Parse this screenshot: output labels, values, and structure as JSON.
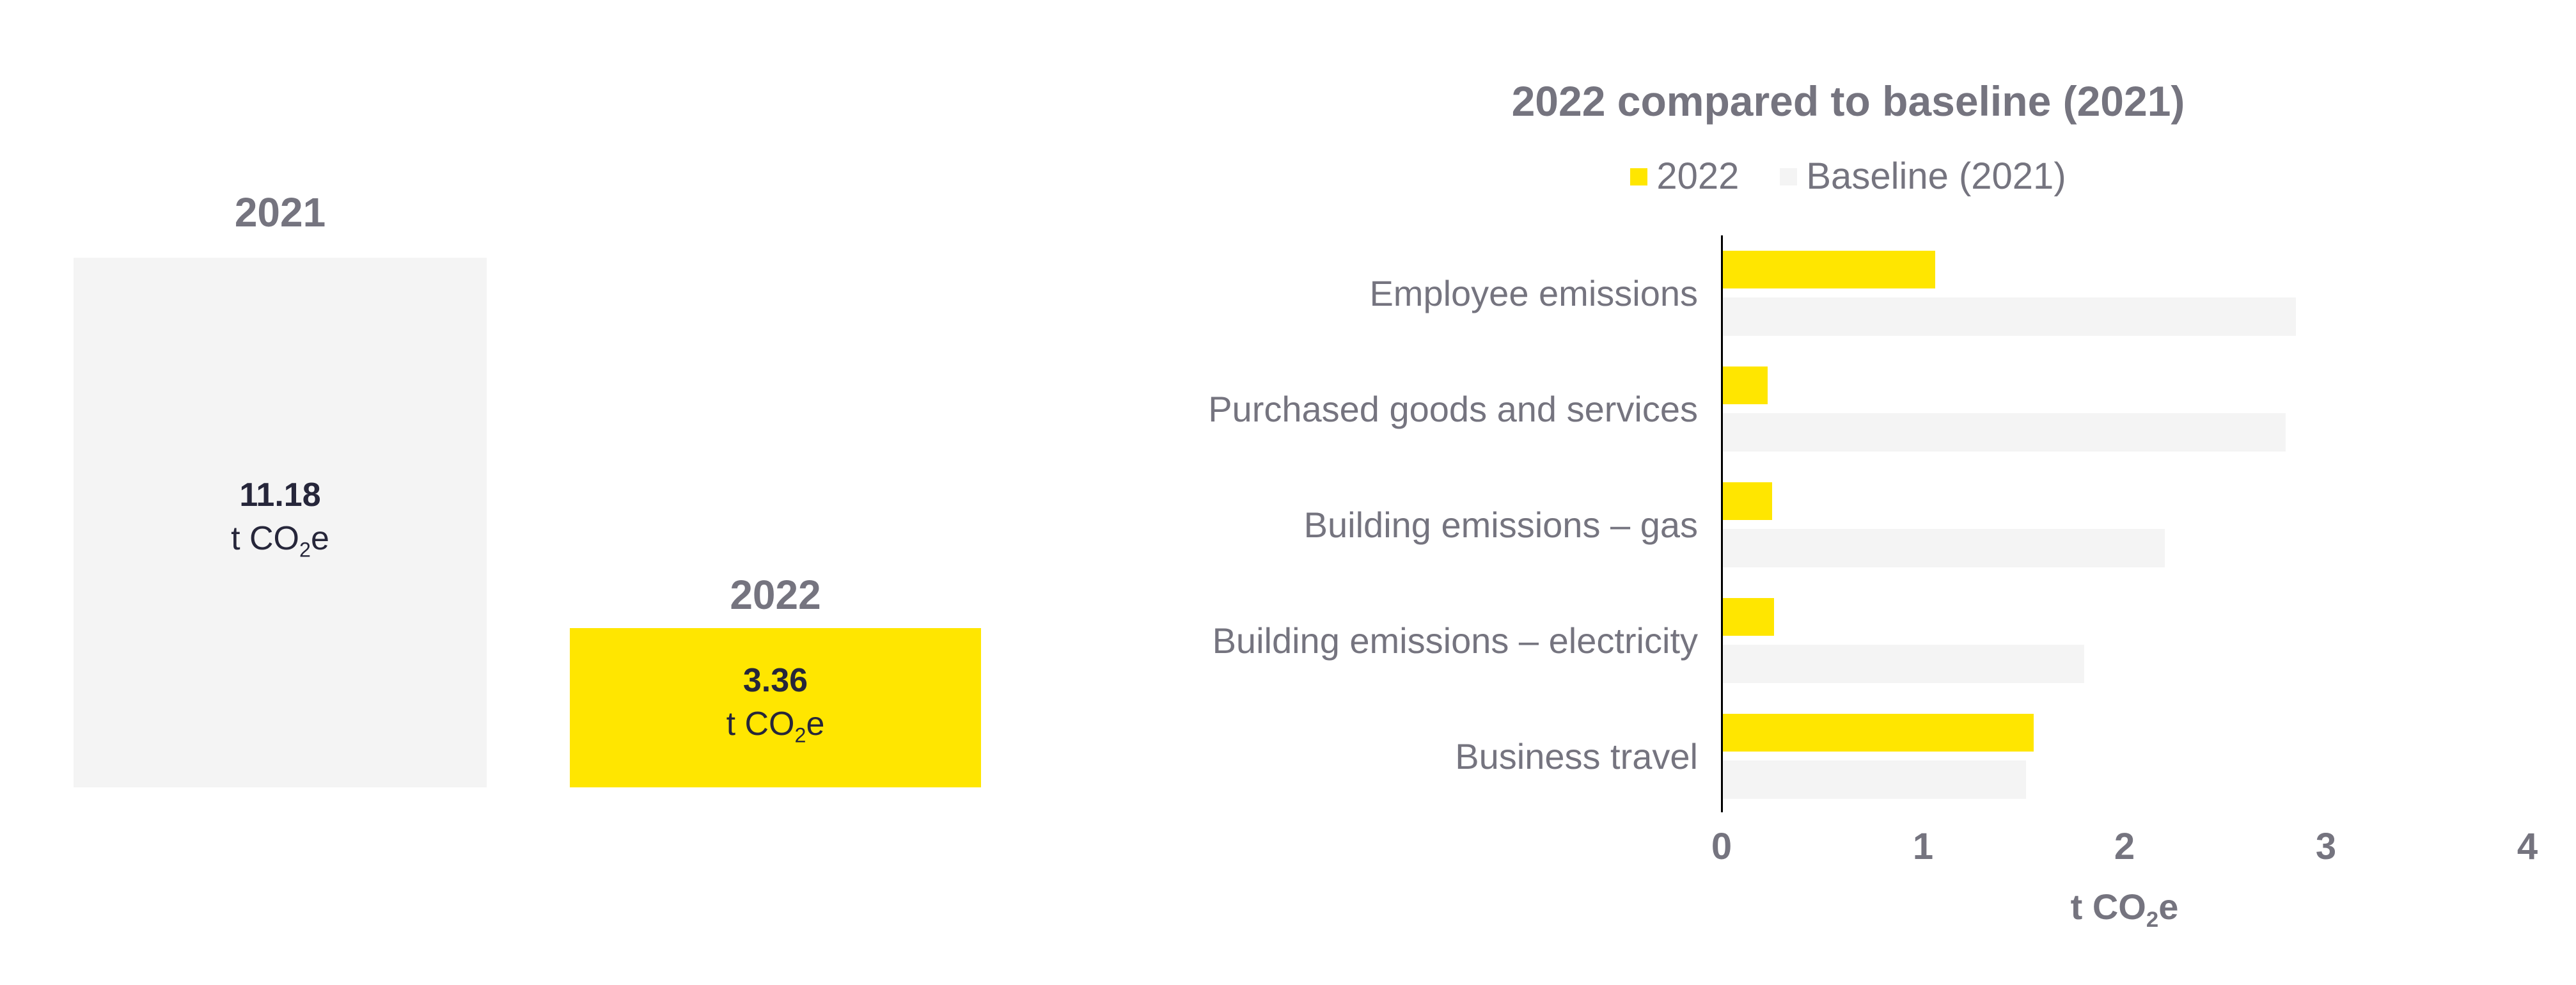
{
  "colors": {
    "accent_yellow": "#FFE600",
    "bar_gray": "#F4F4F4",
    "text_gray": "#75747F",
    "text_dark": "#26263A",
    "axis_black": "#000000"
  },
  "chart_data": [
    {
      "type": "bar",
      "orientation": "vertical",
      "title": "",
      "categories": [
        "2021",
        "2022"
      ],
      "values": [
        11.18,
        3.36
      ],
      "value_labels": [
        "11.18",
        "3.36"
      ],
      "unit_parts": {
        "pre": "t CO",
        "sub": "2",
        "post": "e"
      },
      "bar_colors": [
        "#F4F4F4",
        "#FFE600"
      ],
      "ylim": [
        0,
        11.18
      ],
      "grid": false
    },
    {
      "type": "bar",
      "orientation": "horizontal",
      "title": "2022 compared to baseline (2021)",
      "categories": [
        "Employee emissions",
        "Purchased goods and services",
        "Building emissions – gas",
        "Building emissions – electricity",
        "Business travel"
      ],
      "series": [
        {
          "name": "2022",
          "color": "#FFE600",
          "values": [
            1.06,
            0.23,
            0.25,
            0.26,
            1.55
          ]
        },
        {
          "name": "Baseline (2021)",
          "color": "#F4F4F4",
          "values": [
            2.85,
            2.8,
            2.2,
            1.8,
            1.51
          ]
        }
      ],
      "x_ticks": [
        "0",
        "1",
        "2",
        "3",
        "4"
      ],
      "xlim": [
        0,
        4
      ],
      "xlabel_parts": {
        "pre": "t CO",
        "sub": "2",
        "post": "e"
      },
      "legend_position": "top",
      "grid": false
    }
  ]
}
